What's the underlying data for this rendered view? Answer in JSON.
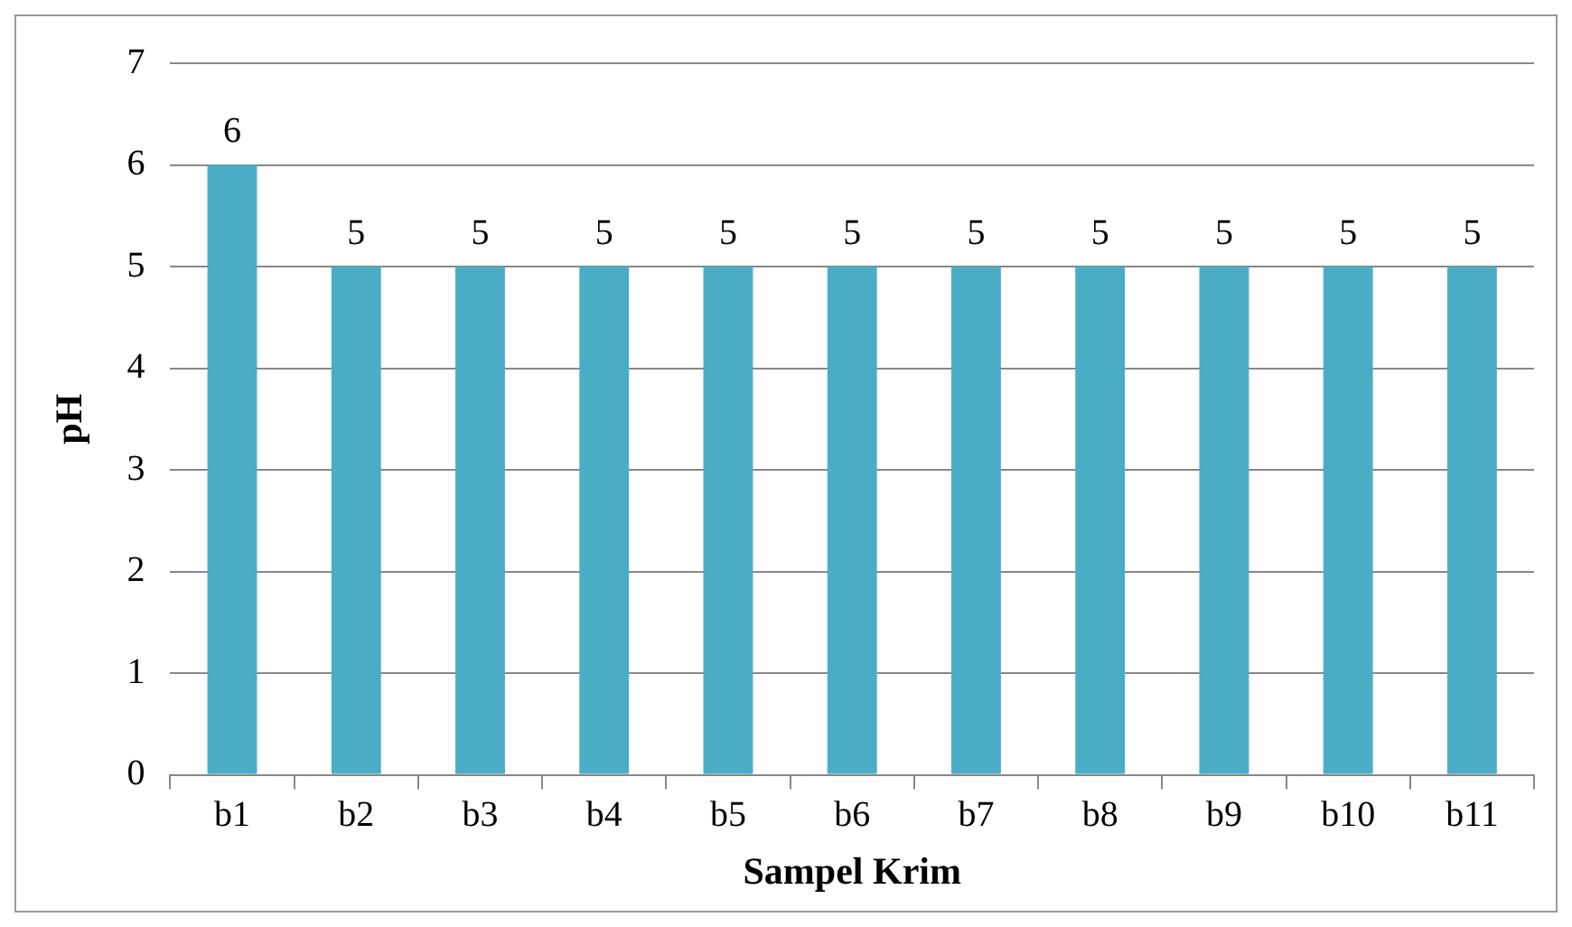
{
  "chart_data": {
    "type": "bar",
    "xlabel": "Sampel Krim",
    "ylabel": "pH",
    "categories": [
      "b1",
      "b2",
      "b3",
      "b4",
      "b5",
      "b6",
      "b7",
      "b8",
      "b9",
      "b10",
      "b11"
    ],
    "values": [
      6,
      5,
      5,
      5,
      5,
      5,
      5,
      5,
      5,
      5,
      5
    ],
    "color": "#4bacc6",
    "ylim": [
      0,
      7
    ],
    "yticks": [
      0,
      1,
      2,
      3,
      4,
      5,
      6,
      7
    ],
    "grid": "y",
    "data_labels": true,
    "legend": false
  }
}
